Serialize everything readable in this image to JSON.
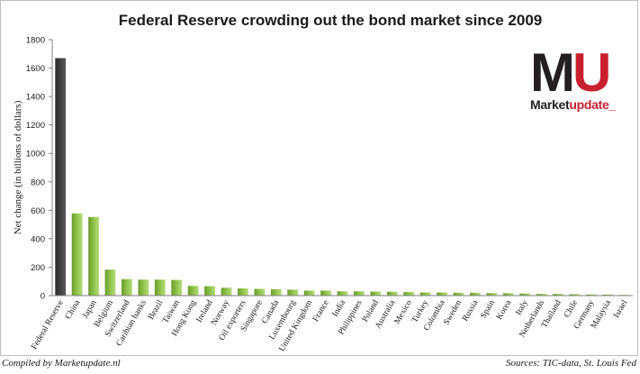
{
  "footer": {
    "left": "Compiled by Marketupdate.nl",
    "right": "Sources: TIC-data, St. Louis Fed"
  },
  "logo": {
    "letters_a": "M",
    "letters_b": "U",
    "word_a": "Market",
    "word_b": "update_"
  },
  "colors": {
    "highlight": "#404040",
    "bar": "#8dc047",
    "logo_red": "#c8202f"
  },
  "chart_data": {
    "type": "bar",
    "title": "Federal Reserve crowding out the bond market since 2009",
    "xlabel": "",
    "ylabel": "Net change (in billions of dollars)",
    "ylim": [
      0,
      1800
    ],
    "yticks": [
      0,
      200,
      400,
      600,
      800,
      1000,
      1200,
      1400,
      1600,
      1800
    ],
    "grid": false,
    "legend": "none",
    "highlight_category": "Federal Reserve",
    "categories": [
      "Federal Reserve",
      "China",
      "Japan",
      "Belgium",
      "Switzerland",
      "Caribian banks",
      "Brazil",
      "Taiwan",
      "Hong Kong",
      "Ireland",
      "Norway",
      "Oil exporters",
      "Singapore",
      "Canada",
      "Luxembourg",
      "United Kingdom",
      "France",
      "India",
      "Philippines",
      "Poland",
      "Australia",
      "Mexico",
      "Turkey",
      "Colombia",
      "Sweden",
      "Russia",
      "Spain",
      "Korea",
      "Italy",
      "Netherlands",
      "Thailand",
      "Chile",
      "Germany",
      "Malaysia",
      "Israel"
    ],
    "values": [
      1670,
      578,
      553,
      183,
      116,
      112,
      112,
      110,
      68,
      66,
      55,
      50,
      47,
      45,
      42,
      35,
      35,
      30,
      30,
      28,
      27,
      25,
      22,
      22,
      20,
      20,
      18,
      17,
      15,
      12,
      12,
      10,
      8,
      7,
      5
    ]
  }
}
